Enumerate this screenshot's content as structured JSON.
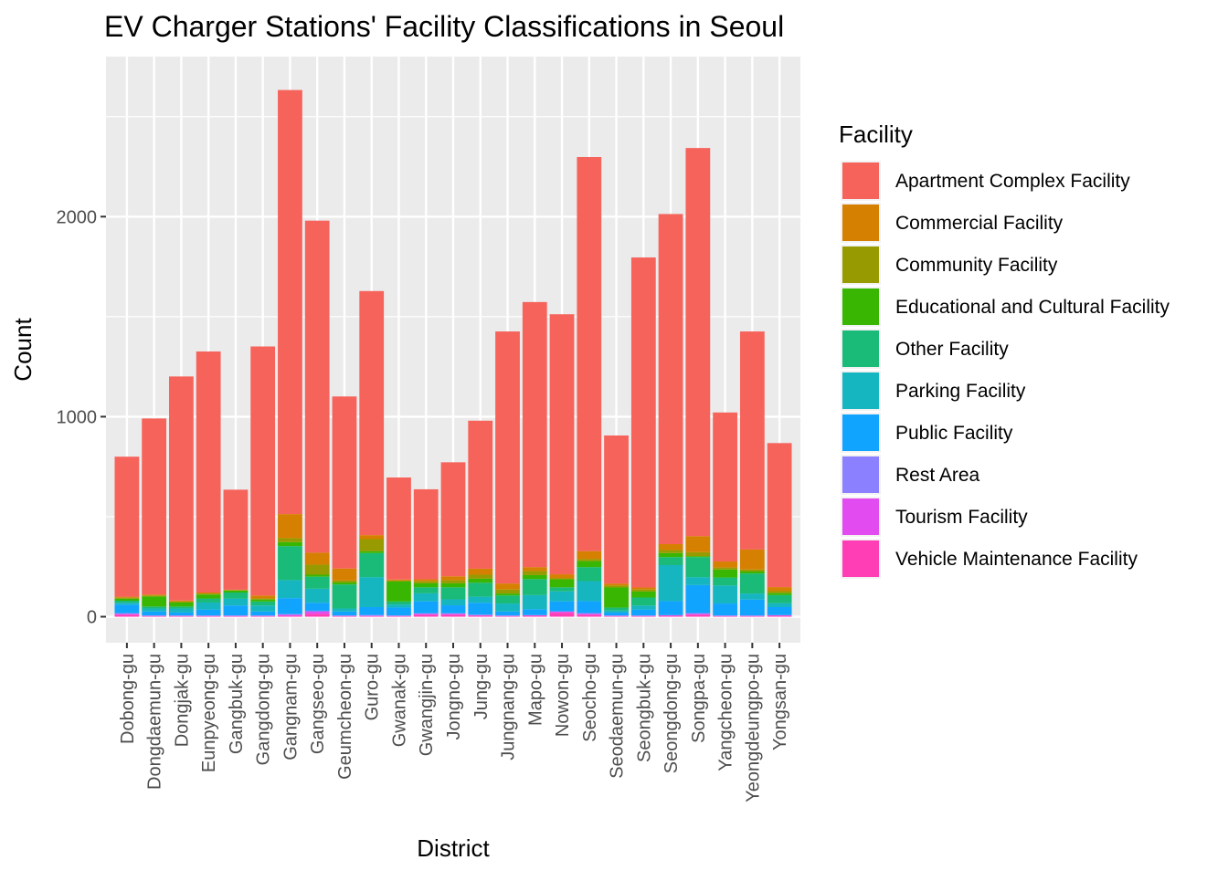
{
  "chart_data": {
    "type": "bar",
    "stacked": true,
    "title": "EV Charger Stations' Facility Classifications in Seoul",
    "xlabel": "District",
    "ylabel": "Count",
    "ylim": [
      -130,
      2800
    ],
    "yticks": [
      0,
      1000,
      2000
    ],
    "grid": true,
    "legend_position": "right",
    "legend_title": "Facility",
    "categories": [
      "Dobong-gu",
      "Dongdaemun-gu",
      "Dongjak-gu",
      "Eunpyeong-gu",
      "Gangbuk-gu",
      "Gangdong-gu",
      "Gangnam-gu",
      "Gangseo-gu",
      "Geumcheon-gu",
      "Guro-gu",
      "Gwanak-gu",
      "Gwangjin-gu",
      "Jongno-gu",
      "Jung-gu",
      "Jungnang-gu",
      "Mapo-gu",
      "Nowon-gu",
      "Seocho-gu",
      "Seodaemun-gu",
      "Seongbuk-gu",
      "Seongdong-gu",
      "Songpa-gu",
      "Yangcheon-gu",
      "Yeongdeungpo-gu",
      "Yongsan-gu"
    ],
    "series": [
      {
        "name": "Vehicle Maintenance Facility",
        "color": "#FF3DB5",
        "values": [
          10,
          3,
          3,
          3,
          3,
          3,
          5,
          15,
          3,
          3,
          3,
          10,
          10,
          5,
          3,
          5,
          20,
          10,
          3,
          3,
          5,
          10,
          3,
          3,
          5
        ]
      },
      {
        "name": "Tourism Facility",
        "color": "#E14BEF",
        "values": [
          5,
          2,
          2,
          2,
          2,
          2,
          5,
          10,
          2,
          3,
          2,
          5,
          5,
          3,
          2,
          2,
          5,
          5,
          2,
          2,
          2,
          5,
          2,
          2,
          2
        ]
      },
      {
        "name": "Rest Area",
        "color": "#8B80FF",
        "values": [
          2,
          1,
          1,
          1,
          1,
          1,
          3,
          5,
          1,
          2,
          1,
          2,
          2,
          2,
          1,
          1,
          2,
          3,
          1,
          1,
          1,
          3,
          1,
          1,
          1
        ]
      },
      {
        "name": "Public Facility",
        "color": "#11A4FF",
        "values": [
          43,
          20,
          15,
          30,
          50,
          20,
          80,
          40,
          20,
          40,
          40,
          60,
          40,
          60,
          20,
          30,
          50,
          60,
          15,
          30,
          70,
          140,
          60,
          80,
          40
        ]
      },
      {
        "name": "Parking Facility",
        "color": "#16B6C0",
        "values": [
          10,
          15,
          20,
          35,
          35,
          30,
          90,
          70,
          15,
          150,
          15,
          40,
          30,
          30,
          40,
          70,
          50,
          100,
          10,
          20,
          180,
          40,
          90,
          30,
          20
        ]
      },
      {
        "name": "Other Facility",
        "color": "#1ABA78",
        "values": [
          10,
          10,
          10,
          20,
          30,
          20,
          170,
          60,
          120,
          120,
          15,
          30,
          60,
          70,
          40,
          80,
          20,
          70,
          15,
          40,
          40,
          100,
          40,
          100,
          40
        ]
      },
      {
        "name": "Educational and Cultural Facility",
        "color": "#39B601",
        "values": [
          10,
          50,
          20,
          20,
          10,
          10,
          20,
          10,
          10,
          10,
          100,
          20,
          20,
          20,
          10,
          20,
          40,
          30,
          100,
          30,
          20,
          5,
          40,
          10,
          10
        ]
      },
      {
        "name": "Community Facility",
        "color": "#979A00",
        "values": [
          5,
          5,
          5,
          5,
          2,
          5,
          20,
          50,
          10,
          60,
          5,
          10,
          15,
          20,
          20,
          20,
          5,
          10,
          10,
          10,
          15,
          20,
          10,
          10,
          10
        ]
      },
      {
        "name": "Commercial Facility",
        "color": "#D68001",
        "values": [
          5,
          5,
          5,
          5,
          2,
          15,
          120,
          60,
          60,
          20,
          5,
          10,
          20,
          30,
          30,
          20,
          20,
          40,
          10,
          10,
          30,
          80,
          30,
          100,
          20
        ]
      },
      {
        "name": "Apartment Complex Facility",
        "color": "#F6635B",
        "values": [
          700,
          880,
          1120,
          1205,
          500,
          1245,
          2120,
          1660,
          860,
          1220,
          510,
          450,
          570,
          740,
          1260,
          1325,
          1300,
          1970,
          740,
          1650,
          1650,
          1940,
          745,
          1090,
          720
        ]
      }
    ]
  }
}
